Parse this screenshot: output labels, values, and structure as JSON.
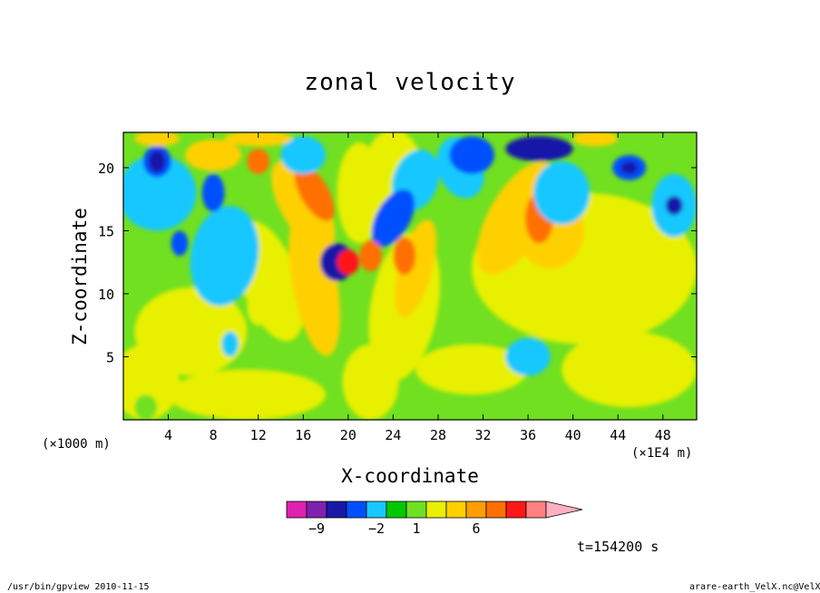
{
  "chart_data": {
    "type": "heatmap",
    "title": "zonal velocity",
    "xlabel": "X-coordinate",
    "ylabel": "Z-coordinate",
    "x_unit_left": "(×1000 m)",
    "x_unit_right": "(×1E4 m)",
    "xlim": [
      0,
      51
    ],
    "ylim": [
      0,
      22.8
    ],
    "x_ticks": [
      4,
      8,
      12,
      16,
      20,
      24,
      28,
      32,
      36,
      40,
      44,
      48
    ],
    "y_ticks": [
      5,
      10,
      15,
      20
    ],
    "colorbar": {
      "colors": [
        "#e020b0",
        "#8020b0",
        "#1818a8",
        "#0050ff",
        "#18c8ff",
        "#00c800",
        "#70e020",
        "#e8f000",
        "#ffd000",
        "#ffa000",
        "#ff7000",
        "#ff1818",
        "#ff8080",
        "#ffb0c0"
      ],
      "tick_labels": [
        "−9",
        "−2",
        "1",
        "6"
      ],
      "tick_levels": [
        1.5,
        4.5,
        6.5,
        9.5
      ]
    },
    "time_label": "t=154200 s",
    "footer_left": "/usr/bin/gpview  2010-11-15",
    "footer_right": "arare-earth_VelX.nc@VelX"
  }
}
